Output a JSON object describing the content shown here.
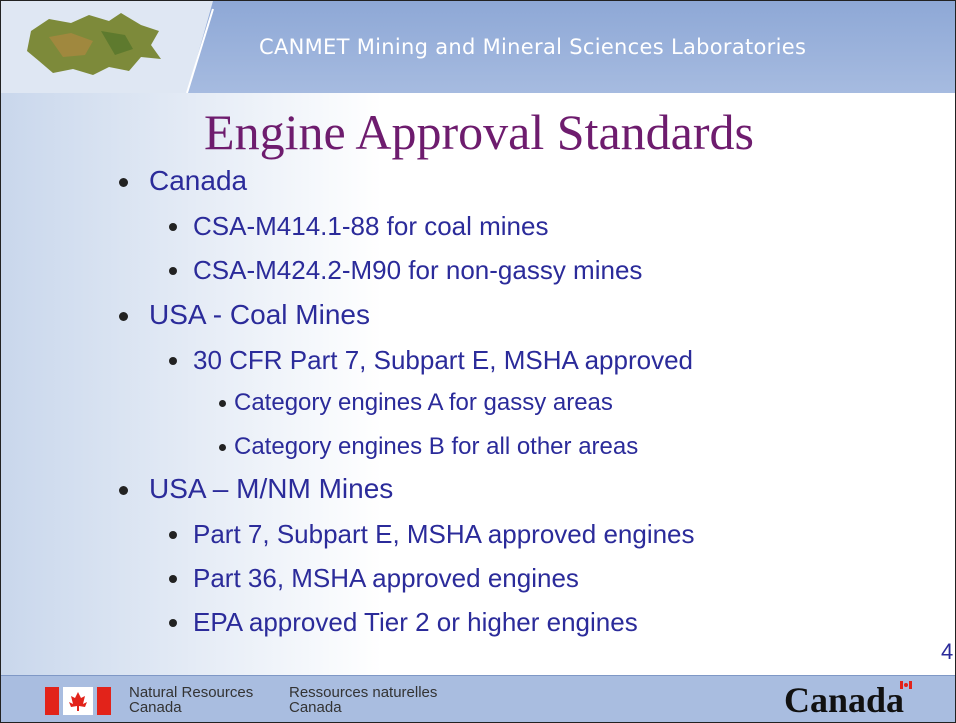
{
  "header": {
    "title": "CANMET Mining and Mineral Sciences Laboratories"
  },
  "slide": {
    "title": "Engine Approval Standards",
    "page_number": "4"
  },
  "body": {
    "items": [
      {
        "text": "Canada",
        "items": [
          {
            "text": "CSA-M414.1-88 for coal mines"
          },
          {
            "text": "CSA-M424.2-M90 for non-gassy mines"
          }
        ]
      },
      {
        "text": "USA - Coal Mines",
        "items": [
          {
            "text": "30 CFR Part 7, Subpart E, MSHA approved",
            "items": [
              {
                "text": "Category engines A for gassy areas"
              },
              {
                "text": "Category engines B for all other areas"
              }
            ]
          }
        ]
      },
      {
        "text": "USA – M/NM Mines",
        "items": [
          {
            "text": "Part 7, Subpart E, MSHA approved engines"
          },
          {
            "text": "Part 36, MSHA approved engines"
          },
          {
            "text": "EPA approved Tier 2 or higher engines"
          }
        ]
      }
    ]
  },
  "footer": {
    "department_en": [
      "Natural Resources",
      "Canada"
    ],
    "department_fr": [
      "Ressources naturelles",
      "Canada"
    ],
    "wordmark": "Canada"
  }
}
